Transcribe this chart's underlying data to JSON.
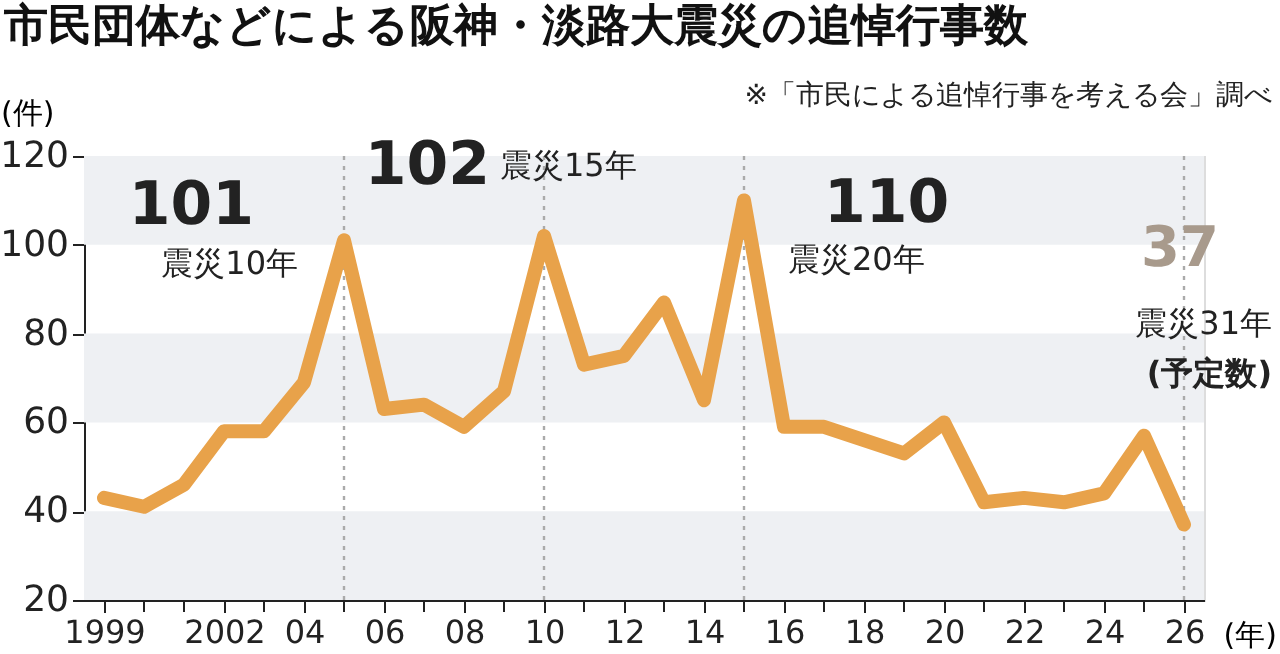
{
  "chart_data": {
    "type": "line",
    "title": "市民団体などによる阪神・淡路大震災の追悼行事数",
    "ylabel": "(件)",
    "xlabel": "(年)",
    "x": [
      1999,
      2000,
      2001,
      2002,
      2003,
      2004,
      2005,
      2006,
      2007,
      2008,
      2009,
      2010,
      2011,
      2012,
      2013,
      2014,
      2015,
      2016,
      2017,
      2018,
      2019,
      2020,
      2021,
      2022,
      2023,
      2024,
      2025,
      2026
    ],
    "series": [
      {
        "color": "#e8a24a",
        "values": [
          43,
          41,
          46,
          58,
          58,
          69,
          101,
          63,
          64,
          59,
          67,
          102,
          73,
          75,
          87,
          65,
          110,
          59,
          59,
          56,
          53,
          60,
          42,
          43,
          42,
          44,
          57,
          37
        ]
      }
    ],
    "xlim": [
      1998.5,
      2026.5
    ],
    "xticks": [
      {
        "value": 1999,
        "label": "1999"
      },
      {
        "value": 2000,
        "label": null
      },
      {
        "value": 2001,
        "label": null
      },
      {
        "value": 2002,
        "label": "2002"
      },
      {
        "value": 2003,
        "label": null
      },
      {
        "value": 2004,
        "label": "04"
      },
      {
        "value": 2005,
        "label": null
      },
      {
        "value": 2006,
        "label": "06"
      },
      {
        "value": 2007,
        "label": null
      },
      {
        "value": 2008,
        "label": "08"
      },
      {
        "value": 2009,
        "label": null
      },
      {
        "value": 2010,
        "label": "10"
      },
      {
        "value": 2011,
        "label": null
      },
      {
        "value": 2012,
        "label": "12"
      },
      {
        "value": 2013,
        "label": null
      },
      {
        "value": 2014,
        "label": "14"
      },
      {
        "value": 2015,
        "label": null
      },
      {
        "value": 2016,
        "label": "16"
      },
      {
        "value": 2017,
        "label": null
      },
      {
        "value": 2018,
        "label": "18"
      },
      {
        "value": 2019,
        "label": null
      },
      {
        "value": 2020,
        "label": "20"
      },
      {
        "value": 2021,
        "label": null
      },
      {
        "value": 2022,
        "label": "22"
      },
      {
        "value": 2023,
        "label": null
      },
      {
        "value": 2024,
        "label": "24"
      },
      {
        "value": 2025,
        "label": null
      },
      {
        "value": 2026,
        "label": "26"
      }
    ],
    "ylim": [
      20,
      120
    ],
    "yticks": [
      20,
      40,
      60,
      80,
      100,
      120
    ],
    "grid": false,
    "line_style": "solid",
    "bands": [
      {
        "axis": "y",
        "from": 20,
        "to": 40,
        "color": "#eef0f3"
      },
      {
        "axis": "y",
        "from": 60,
        "to": 80,
        "color": "#eef0f3"
      },
      {
        "axis": "y",
        "from": 100,
        "to": 120,
        "color": "#eef0f3"
      }
    ],
    "ref_lines": [
      {
        "axis": "x",
        "value": 2005,
        "line_style": "dotted",
        "color": "#aaaaaa"
      },
      {
        "axis": "x",
        "value": 2010,
        "line_style": "dotted",
        "color": "#aaaaaa"
      },
      {
        "axis": "x",
        "value": 2015,
        "line_style": "dotted",
        "color": "#aaaaaa"
      },
      {
        "axis": "x",
        "value": 2026,
        "line_style": "dotted",
        "color": "#aaaaaa"
      }
    ],
    "annotations": [
      {
        "text": "101",
        "x": 2005,
        "y": 101
      },
      {
        "text": "震災10年",
        "x": 2005,
        "y": 101
      },
      {
        "text": "102",
        "x": 2010,
        "y": 102
      },
      {
        "text": "震災15年",
        "x": 2010,
        "y": 102
      },
      {
        "text": "110",
        "x": 2015,
        "y": 110
      },
      {
        "text": "震災20年",
        "x": 2015,
        "y": 110
      },
      "37",
      "震災31年",
      "(予定数)",
      "※「市民による追悼行事を考える会」調べ"
    ]
  }
}
